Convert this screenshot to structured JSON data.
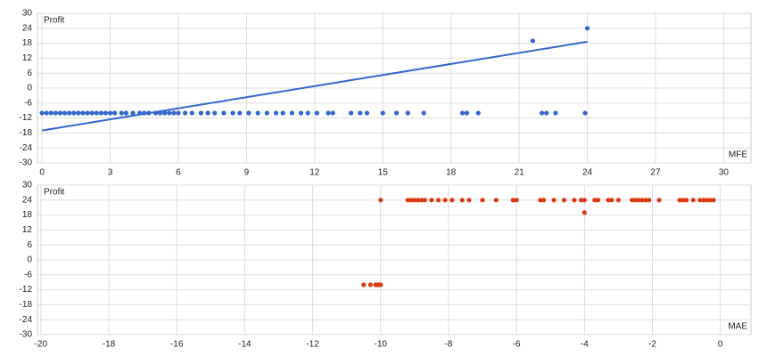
{
  "chart_data": [
    {
      "type": "scatter",
      "y_label": "Profit",
      "x_label": "MFE",
      "color": "#3366cc",
      "grid": true,
      "x": [
        0,
        0.2,
        0.4,
        0.6,
        0.8,
        1.0,
        1.2,
        1.4,
        1.6,
        1.8,
        2.0,
        2.2,
        2.4,
        2.6,
        2.8,
        3.0,
        3.2,
        3.5,
        3.7,
        4.0,
        4.3,
        4.5,
        4.7,
        5.0,
        5.2,
        5.4,
        5.6,
        5.8,
        6.0,
        6.3,
        6.6,
        7.0,
        7.3,
        7.6,
        8.0,
        8.4,
        8.7,
        9.1,
        9.5,
        9.9,
        10.3,
        10.6,
        11.0,
        11.4,
        11.7,
        12.1,
        12.6,
        12.8,
        13.6,
        14.0,
        14.3,
        15.0,
        15.6,
        16.1,
        16.8,
        18.5,
        18.7,
        19.2,
        22.0,
        22.2,
        22.6,
        23.9,
        21.6,
        24.0
      ],
      "values": [
        -10,
        -10,
        -10,
        -10,
        -10,
        -10,
        -10,
        -10,
        -10,
        -10,
        -10,
        -10,
        -10,
        -10,
        -10,
        -10,
        -10,
        -10,
        -10,
        -10,
        -10,
        -10,
        -10,
        -10,
        -10,
        -10,
        -10,
        -10,
        -10,
        -10,
        -10,
        -10,
        -10,
        -10,
        -10,
        -10,
        -10,
        -10,
        -10,
        -10,
        -10,
        -10,
        -10,
        -10,
        -10,
        -10,
        -10,
        -10,
        -10,
        -10,
        -10,
        -10,
        -10,
        -10,
        -10,
        -10,
        -10,
        -10,
        -10,
        -10,
        -10,
        -10,
        19,
        24
      ],
      "trendline": {
        "x": [
          0,
          24
        ],
        "values": [
          -17,
          18.6
        ]
      },
      "xlim": [
        -0.2,
        31.2
      ],
      "xticks": [
        0,
        3,
        6,
        9,
        12,
        15,
        18,
        21,
        24,
        27,
        30
      ],
      "ylim": [
        -30,
        30
      ],
      "yticks": [
        30,
        24,
        18,
        12,
        6,
        0,
        -6,
        -12,
        -18,
        -24,
        -30
      ]
    },
    {
      "type": "scatter",
      "y_label": "Profit",
      "x_label": "MAE",
      "color": "#dc3912",
      "grid": true,
      "x": [
        -10,
        -9.2,
        -9.1,
        -9.0,
        -8.9,
        -8.8,
        -8.7,
        -8.5,
        -8.3,
        -8.1,
        -7.9,
        -7.6,
        -7.4,
        -7.0,
        -6.6,
        -6.1,
        -6.0,
        -5.3,
        -5.2,
        -4.9,
        -4.6,
        -4.3,
        -4.1,
        -4.0,
        -3.7,
        -3.6,
        -3.3,
        -3.2,
        -3.0,
        -2.6,
        -2.5,
        -2.4,
        -2.3,
        -2.2,
        -2.1,
        -1.8,
        -1.2,
        -1.1,
        -1.0,
        -0.8,
        -0.6,
        -0.5,
        -0.4,
        -0.3,
        -0.2,
        -4.0,
        -10.5,
        -10.3,
        -10.15,
        -10.1,
        -10.05,
        -10.0
      ],
      "values": [
        24,
        24,
        24,
        24,
        24,
        24,
        24,
        24,
        24,
        24,
        24,
        24,
        24,
        24,
        24,
        24,
        24,
        24,
        24,
        24,
        24,
        24,
        24,
        24,
        24,
        24,
        24,
        24,
        24,
        24,
        24,
        24,
        24,
        24,
        24,
        24,
        24,
        24,
        24,
        24,
        24,
        24,
        24,
        24,
        24,
        19,
        -10,
        -10,
        -10,
        -10,
        -10,
        -10
      ],
      "xlim": [
        -20.1,
        0.9
      ],
      "xticks": [
        -20,
        -18,
        -16,
        -14,
        -12,
        -10,
        -8,
        -6,
        -4,
        -2,
        0
      ],
      "ylim": [
        -30,
        30
      ],
      "yticks": [
        30,
        24,
        18,
        12,
        6,
        0,
        -6,
        -12,
        -18,
        -24,
        -30
      ]
    }
  ]
}
